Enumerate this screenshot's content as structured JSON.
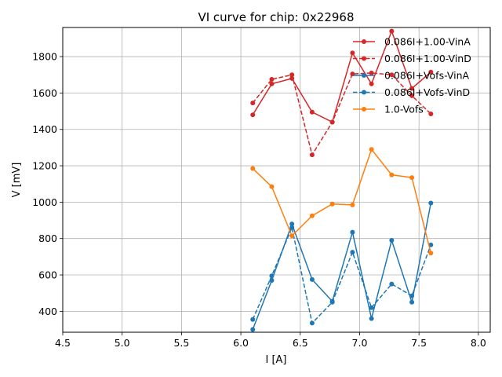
{
  "chart_data": {
    "type": "line",
    "title": "VI curve for chip: 0x22968",
    "xlabel": "I [A]",
    "ylabel": "V [mV]",
    "xlim": [
      4.5,
      8.1
    ],
    "ylim": [
      285,
      1960
    ],
    "xticks": [
      "4.5",
      "5.0",
      "5.5",
      "6.0",
      "6.5",
      "7.0",
      "7.5",
      "8.0"
    ],
    "yticks": [
      "400",
      "600",
      "800",
      "1000",
      "1200",
      "1400",
      "1600",
      "1800"
    ],
    "grid": true,
    "legend_position": "top-right",
    "x": [
      6.1,
      6.26,
      6.43,
      6.6,
      6.77,
      6.94,
      7.1,
      7.27,
      7.44,
      7.6
    ],
    "series": [
      {
        "name": "0.086I+1.00-VinA",
        "color": "#d62728",
        "dash": "solid",
        "values": [
          1480,
          1650,
          1680,
          1495,
          1440,
          1820,
          1650,
          1940,
          1625,
          1715
        ]
      },
      {
        "name": "0.086I+1.00-VinD",
        "color": "#d62728",
        "dash": "dashed",
        "values": [
          1545,
          1675,
          1700,
          1260,
          1440,
          1705,
          1710,
          1700,
          1585,
          1485
        ]
      },
      {
        "name": "0.086I+Vofs-VinA",
        "color": "#1f77b4",
        "dash": "solid",
        "values": [
          300,
          570,
          880,
          575,
          455,
          835,
          360,
          790,
          450,
          995
        ]
      },
      {
        "name": "0.086I+Vofs-VinD",
        "color": "#1f77b4",
        "dash": "dashed",
        "values": [
          355,
          595,
          860,
          335,
          450,
          725,
          420,
          550,
          485,
          765
        ]
      },
      {
        "name": "1.0-Vofs",
        "color": "#ff7f0e",
        "dash": "solid",
        "values": [
          1185,
          1085,
          815,
          925,
          990,
          985,
          1290,
          1150,
          1135,
          720
        ]
      }
    ]
  }
}
